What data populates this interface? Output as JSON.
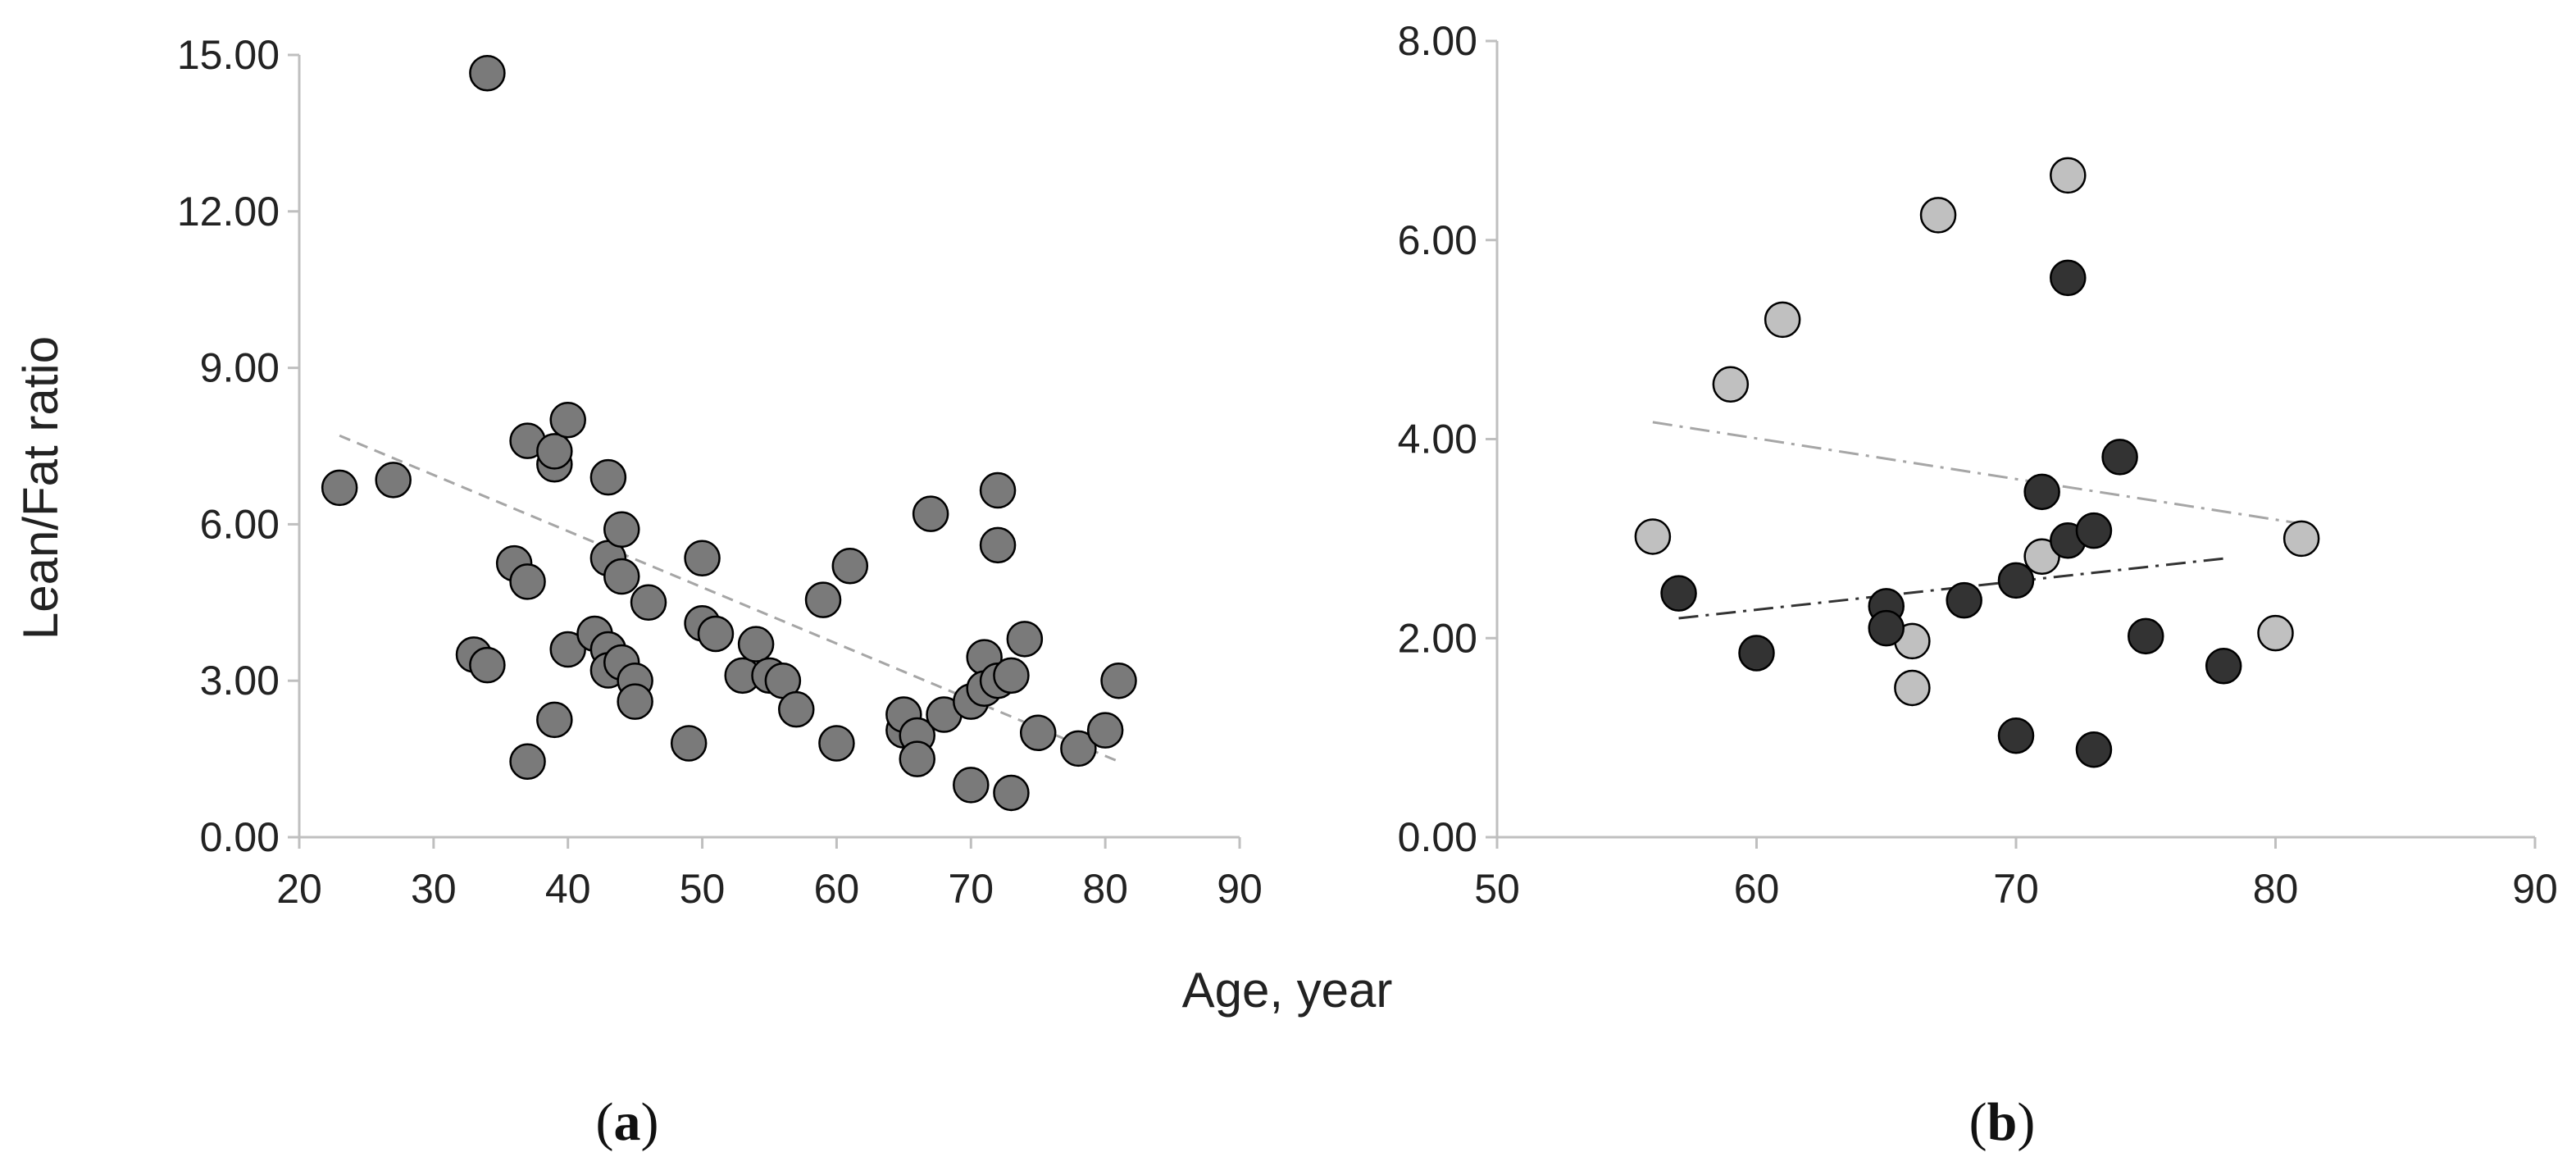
{
  "ylabel": "Lean/Fat ratio",
  "xlabel": "Age, year",
  "panel_labels": {
    "a": "a",
    "b": "b"
  },
  "chart_data": [
    {
      "panel": "a",
      "type": "scatter",
      "xlim": [
        20,
        90
      ],
      "ylim": [
        0,
        15
      ],
      "xticks": [
        "20",
        "30",
        "40",
        "50",
        "60",
        "70",
        "80",
        "90"
      ],
      "yticks": [
        "0.00",
        "3.00",
        "6.00",
        "9.00",
        "12.00",
        "15.00"
      ],
      "grid": false,
      "series": [
        {
          "color": "#7a7a7a",
          "points": [
            [
              23,
              6.7
            ],
            [
              27,
              6.85
            ],
            [
              33,
              3.5
            ],
            [
              34,
              14.65
            ],
            [
              34,
              3.3
            ],
            [
              36,
              5.25
            ],
            [
              37,
              7.6
            ],
            [
              37,
              4.9
            ],
            [
              37,
              1.45
            ],
            [
              39,
              7.15
            ],
            [
              39,
              7.4
            ],
            [
              39,
              2.25
            ],
            [
              40,
              8.0
            ],
            [
              40,
              3.6
            ],
            [
              42,
              3.9
            ],
            [
              43,
              6.9
            ],
            [
              43,
              5.35
            ],
            [
              43,
              3.6
            ],
            [
              43,
              3.2
            ],
            [
              44,
              5.9
            ],
            [
              44,
              5.0
            ],
            [
              44,
              3.35
            ],
            [
              45,
              3.0
            ],
            [
              45,
              2.6
            ],
            [
              46,
              4.5
            ],
            [
              49,
              1.8
            ],
            [
              50,
              5.35
            ],
            [
              50,
              4.1
            ],
            [
              51,
              3.9
            ],
            [
              53,
              3.1
            ],
            [
              54,
              3.7
            ],
            [
              55,
              3.1
            ],
            [
              56,
              3.0
            ],
            [
              57,
              2.45
            ],
            [
              59,
              4.55
            ],
            [
              60,
              1.8
            ],
            [
              61,
              5.2
            ],
            [
              65,
              2.05
            ],
            [
              65,
              2.35
            ],
            [
              66,
              1.95
            ],
            [
              66,
              1.5
            ],
            [
              67,
              6.2
            ],
            [
              68,
              2.35
            ],
            [
              70,
              2.6
            ],
            [
              70,
              1.0
            ],
            [
              71,
              3.45
            ],
            [
              71,
              2.85
            ],
            [
              72,
              6.65
            ],
            [
              72,
              5.6
            ],
            [
              72,
              3.0
            ],
            [
              73,
              3.1
            ],
            [
              73,
              0.85
            ],
            [
              74,
              3.8
            ],
            [
              75,
              2.0
            ],
            [
              78,
              1.7
            ],
            [
              80,
              2.05
            ],
            [
              81,
              3.0
            ]
          ]
        }
      ],
      "trendlines": [
        {
          "color": "#a6a6a6",
          "dash": "dashed",
          "from": [
            23,
            7.7
          ],
          "to": [
            81,
            1.45
          ]
        }
      ]
    },
    {
      "panel": "b",
      "type": "scatter",
      "xlim": [
        50,
        90
      ],
      "ylim": [
        0,
        8
      ],
      "xticks": [
        "50",
        "60",
        "70",
        "80",
        "90"
      ],
      "yticks": [
        "0.00",
        "2.00",
        "4.00",
        "6.00",
        "8.00"
      ],
      "grid": false,
      "series": [
        {
          "color": "#c0c0c0",
          "points": [
            [
              56,
              3.02
            ],
            [
              59,
              4.55
            ],
            [
              61,
              5.2
            ],
            [
              66,
              1.97
            ],
            [
              66,
              1.5
            ],
            [
              67,
              6.25
            ],
            [
              71,
              2.82
            ],
            [
              72,
              6.65
            ],
            [
              80,
              2.05
            ],
            [
              81,
              3.0
            ]
          ]
        },
        {
          "color": "#333333",
          "points": [
            [
              57,
              2.45
            ],
            [
              60,
              1.85
            ],
            [
              65,
              2.32
            ],
            [
              65,
              2.1
            ],
            [
              68,
              2.38
            ],
            [
              70,
              2.58
            ],
            [
              70,
              1.02
            ],
            [
              71,
              3.47
            ],
            [
              72,
              5.62
            ],
            [
              72,
              2.98
            ],
            [
              73,
              3.08
            ],
            [
              73,
              0.88
            ],
            [
              74,
              3.82
            ],
            [
              75,
              2.02
            ],
            [
              78,
              1.72
            ]
          ]
        }
      ],
      "trendlines": [
        {
          "color": "#a6a6a6",
          "dash": "dash-dot",
          "from": [
            56,
            4.17
          ],
          "to": [
            81,
            3.15
          ]
        },
        {
          "color": "#333333",
          "dash": "dash-dot",
          "from": [
            57,
            2.2
          ],
          "to": [
            78,
            2.8
          ]
        }
      ]
    }
  ]
}
